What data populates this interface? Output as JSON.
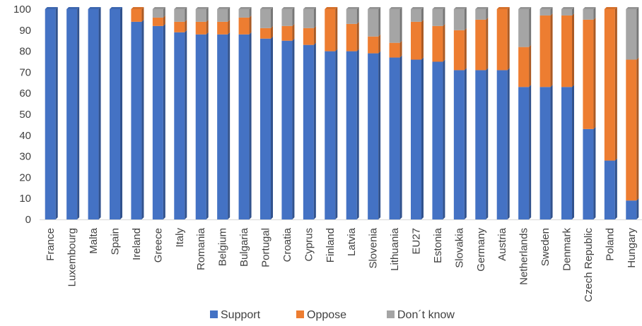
{
  "chart_data": {
    "type": "bar",
    "stacked": true,
    "categories": [
      "France",
      "Luxembourg",
      "Malta",
      "Spain",
      "Ireland",
      "Greece",
      "Italy",
      "Romania",
      "Belgium",
      "Bulgaria",
      "Portugal",
      "Croatia",
      "Cyprus",
      "Finland",
      "Latvia",
      "Slovenia",
      "Lithuania",
      "EU27",
      "Estonia",
      "Slovakia",
      "Germany",
      "Austria",
      "Netherlands",
      "Sweden",
      "Denmark",
      "Czech Republic",
      "Poland",
      "Hungary"
    ],
    "series": [
      {
        "name": "Support",
        "color": "#4472c4",
        "values": [
          100,
          100,
          100,
          100,
          94,
          92,
          89,
          88,
          88,
          88,
          86,
          85,
          83,
          80,
          80,
          79,
          77,
          76,
          75,
          71,
          71,
          71,
          63,
          63,
          63,
          43,
          28,
          9
        ]
      },
      {
        "name": "Oppose",
        "color": "#ed7d31",
        "values": [
          0,
          0,
          0,
          0,
          6,
          4,
          5,
          6,
          6,
          8,
          5,
          7,
          8,
          20,
          13,
          8,
          7,
          18,
          17,
          19,
          24,
          29,
          19,
          34,
          34,
          52,
          72,
          67
        ]
      },
      {
        "name": "Don´t know",
        "color": "#a5a5a5",
        "values": [
          0,
          0,
          0,
          0,
          0,
          4,
          6,
          6,
          6,
          4,
          9,
          8,
          9,
          0,
          7,
          13,
          16,
          6,
          8,
          10,
          5,
          0,
          18,
          3,
          3,
          5,
          0,
          24
        ]
      }
    ],
    "yticks": [
      0,
      10,
      20,
      30,
      40,
      50,
      60,
      70,
      80,
      90,
      100
    ],
    "ylim": [
      0,
      100
    ],
    "title": "",
    "xlabel": "",
    "ylabel": "",
    "grid": false,
    "legend_position": "bottom"
  }
}
